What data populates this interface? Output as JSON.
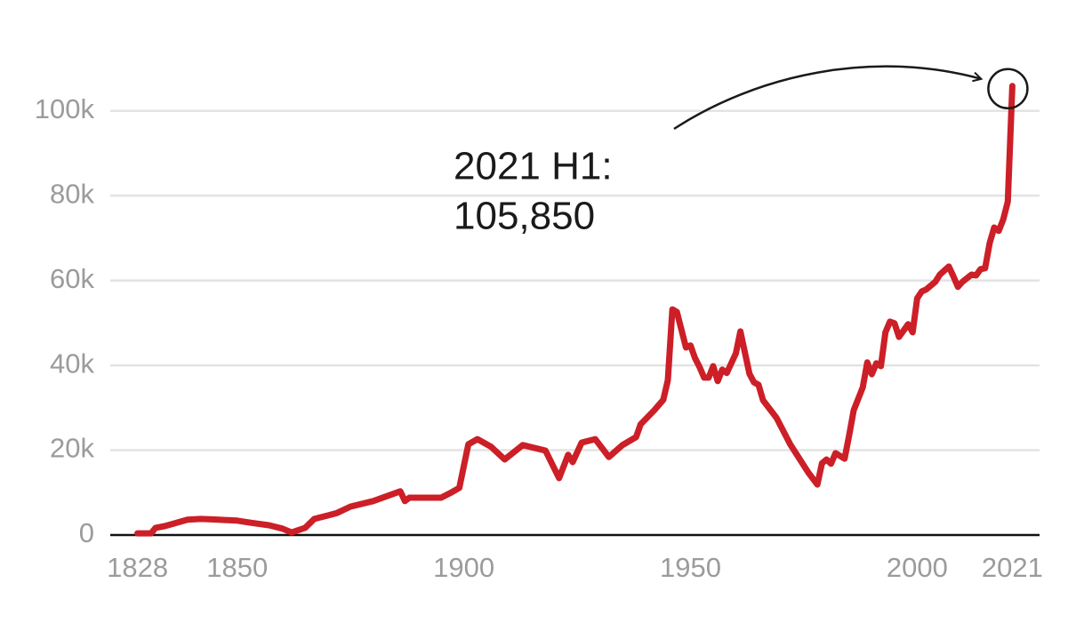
{
  "chart_data": {
    "type": "line",
    "color": "#cc1f27",
    "x": [
      1828,
      1831,
      1832,
      1834,
      1836,
      1839,
      1842,
      1846,
      1850,
      1853,
      1857,
      1860,
      1862,
      1865,
      1867,
      1870,
      1872,
      1875,
      1880,
      1886,
      1887,
      1888,
      1891,
      1895,
      1897,
      1899,
      1901,
      1903,
      1906,
      1909,
      1913,
      1918,
      1921,
      1923,
      1924,
      1926,
      1929,
      1932,
      1935,
      1938,
      1939,
      1942,
      1944,
      1945,
      1946,
      1947,
      1949,
      1950,
      1951,
      1952,
      1953,
      1954,
      1955,
      1956,
      1957,
      1958,
      1960,
      1961,
      1963,
      1964,
      1965,
      1966,
      1969,
      1972,
      1976,
      1978,
      1979,
      1980,
      1981,
      1982,
      1984,
      1985,
      1986,
      1988,
      1989,
      1990,
      1991,
      1992,
      1993,
      1994,
      1995,
      1996,
      1998,
      1999,
      2000,
      2001,
      2002,
      2004,
      2005,
      2007,
      2008,
      2009,
      2010,
      2012,
      2013,
      2014,
      2015,
      2016,
      2017,
      2018,
      2019,
      2020,
      2021
    ],
    "values": [
      400,
      400,
      1700,
      2100,
      2700,
      3600,
      3800,
      3600,
      3400,
      2900,
      2300,
      1500,
      600,
      1700,
      3800,
      4600,
      5200,
      6700,
      8000,
      10300,
      8000,
      8800,
      8800,
      8800,
      9900,
      11100,
      21400,
      22600,
      20800,
      17800,
      21200,
      19900,
      13400,
      18900,
      17200,
      21800,
      22600,
      18400,
      21200,
      23100,
      26100,
      29400,
      31900,
      36500,
      53200,
      52600,
      44200,
      44700,
      41700,
      39600,
      37100,
      37100,
      39800,
      36300,
      39000,
      38200,
      42800,
      48000,
      38000,
      36000,
      35400,
      31800,
      27600,
      21400,
      14700,
      11900,
      16900,
      17800,
      16800,
      19300,
      18000,
      23500,
      29400,
      34800,
      40700,
      37900,
      40500,
      39800,
      47800,
      50300,
      49900,
      46700,
      49700,
      47800,
      55800,
      57400,
      57900,
      59700,
      61400,
      63300,
      61000,
      58500,
      59700,
      61400,
      61200,
      62700,
      62900,
      68800,
      72500,
      71700,
      74400,
      78600,
      105850
    ],
    "xlim": [
      1822,
      2027
    ],
    "xticks": [
      1828,
      1850,
      1900,
      1950,
      2000,
      2021
    ],
    "ylim": [
      0,
      110000
    ],
    "yticks": [
      0,
      {
        "value": 20000,
        "label": "20k"
      },
      {
        "value": 40000,
        "label": "40k"
      },
      {
        "value": 60000,
        "label": "60k"
      },
      {
        "value": 80000,
        "label": "80k"
      },
      {
        "value": 100000,
        "label": "100k"
      }
    ],
    "grid": true,
    "annotation": [
      "2021 H1:",
      "105,850"
    ]
  }
}
